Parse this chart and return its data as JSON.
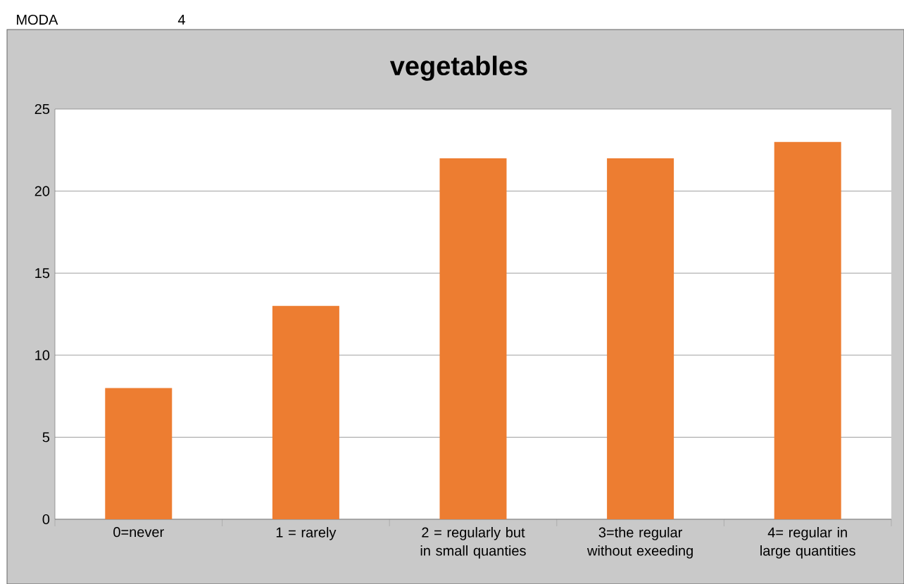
{
  "chart_data": {
    "type": "bar",
    "title": "vegetables",
    "categories": [
      "0=never",
      "1 = rarely",
      "2 = regularly but in small quanties",
      "3=the regular without exeeding",
      "4= regular in large quantities"
    ],
    "values": [
      8,
      13,
      22,
      22,
      23
    ],
    "color": "#ed7d31",
    "ylim": [
      0,
      25
    ],
    "yticks": [
      0,
      5,
      10,
      15,
      20,
      25
    ],
    "grid": "y",
    "annotations": [
      "MODA",
      "4"
    ]
  }
}
